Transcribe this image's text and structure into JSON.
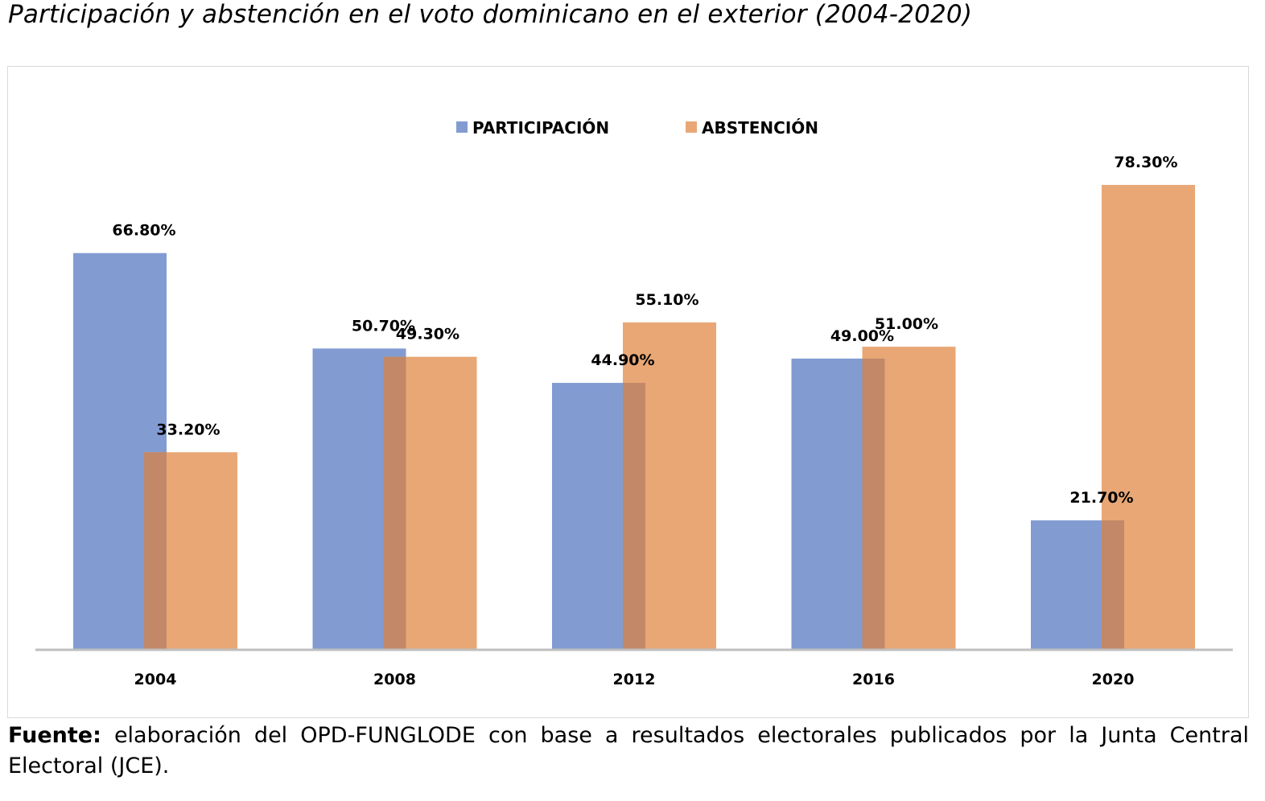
{
  "title": "Participación y abstención en el voto dominicano en el exterior (2004-2020)",
  "source": {
    "label": "Fuente:",
    "text": "elaboración del OPD-FUNGLODE con base a resultados electorales publicados por la Junta Central Electoral (JCE)."
  },
  "colors": {
    "participacion": "#829cd2",
    "abstencion": "#e8a775",
    "overlap": "#c28868",
    "axis": "#bfbfbf"
  },
  "chart_data": {
    "type": "bar",
    "title": "Participación y abstención en el voto dominicano en el exterior (2004-2020)",
    "xlabel": "",
    "ylabel": "",
    "ylim": [
      0,
      85
    ],
    "grid": false,
    "legend_position": "top-center",
    "categories": [
      "2004",
      "2008",
      "2012",
      "2016",
      "2020"
    ],
    "series": [
      {
        "name": "PARTICIPACIÓN",
        "values": [
          66.8,
          50.7,
          44.9,
          49.0,
          21.7
        ],
        "labels": [
          "66.80%",
          "50.70%",
          "44.90%",
          "49.00%",
          "21.70%"
        ]
      },
      {
        "name": "ABSTENCIÓN",
        "values": [
          33.2,
          49.3,
          55.1,
          51.0,
          78.3
        ],
        "labels": [
          "33.20%",
          "49.30%",
          "55.10%",
          "51.00%",
          "78.30%"
        ]
      }
    ]
  }
}
